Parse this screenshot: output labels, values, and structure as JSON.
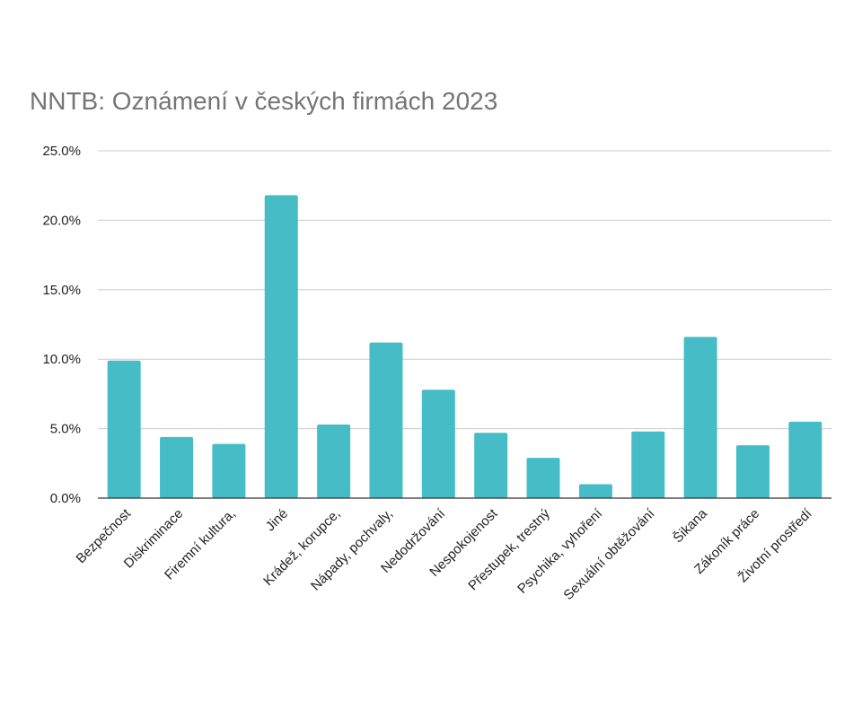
{
  "chart_data": {
    "type": "bar",
    "title": "NNTB: Oznámení v českých firmách 2023",
    "xlabel": "",
    "ylabel": "",
    "ylim": [
      0,
      25
    ],
    "yticks": [
      0,
      5,
      10,
      15,
      20,
      25
    ],
    "ytick_labels": [
      "0.0%",
      "5.0%",
      "10.0%",
      "15.0%",
      "20.0%",
      "25.0%"
    ],
    "grid": true,
    "bar_color": "#46bdc6",
    "categories": [
      "Bezpečnost",
      "Diskriminace",
      "Firemní kultura,",
      "Jiné",
      "Krádež, korupce,",
      "Nápady, pochvaly,",
      "Nedodržování",
      "Nespokojenost",
      "Přestupek, trestný",
      "Psychika, vyhoření",
      "Sexuální obtěžování",
      "Šikana",
      "Zákoník práce",
      "Životní prostředí"
    ],
    "values": [
      9.9,
      4.4,
      3.9,
      21.8,
      5.3,
      11.2,
      7.8,
      4.7,
      2.9,
      1.0,
      4.8,
      11.6,
      3.8,
      5.5
    ]
  }
}
